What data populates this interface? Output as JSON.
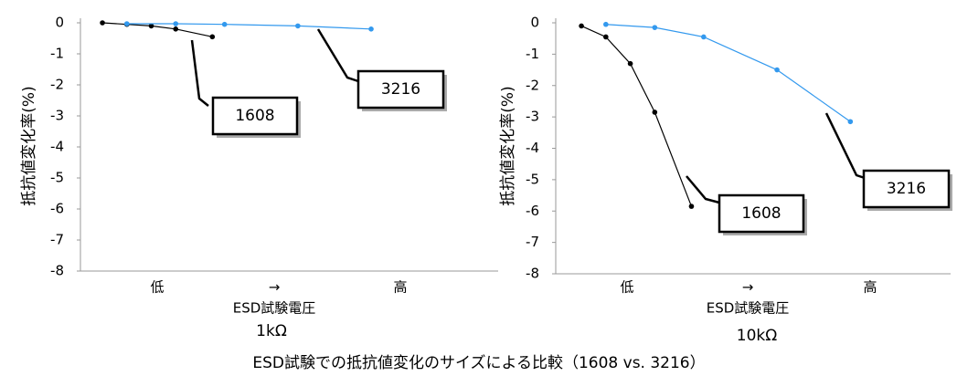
{
  "caption": "ESD試験での抵抗値変化のサイズによる比較（1608 vs. 3216）",
  "chart_data": [
    {
      "type": "line",
      "y_label": "抵抗値変化率(%)",
      "x_label": "ESD試験電圧",
      "x_annotations": [
        "低",
        "→",
        "高"
      ],
      "subtitle": "1kΩ",
      "xlim": [
        -0.9,
        16.2
      ],
      "ylim": [
        -8,
        0
      ],
      "yticks": [
        0,
        -1,
        -2,
        -3,
        -4,
        -5,
        -6,
        -7,
        -8
      ],
      "series": [
        {
          "name": "1608",
          "color": "#000000",
          "x": [
            0,
            1,
            2,
            3,
            4.5
          ],
          "values": [
            0,
            -0.05,
            -0.1,
            -0.2,
            -0.45
          ]
        },
        {
          "name": "3216",
          "color": "#3399ee",
          "x": [
            1,
            3,
            5,
            8,
            11
          ],
          "values": [
            -0.03,
            -0.03,
            -0.05,
            -0.1,
            -0.2
          ]
        }
      ]
    },
    {
      "type": "line",
      "y_label": "抵抗値変化率(%)",
      "x_label": "ESD試験電圧",
      "x_annotations": [
        "低",
        "→",
        "高"
      ],
      "subtitle": "10kΩ",
      "xlim": [
        -1.05,
        15.1
      ],
      "ylim": [
        -8,
        0
      ],
      "yticks": [
        0,
        -1,
        -2,
        -3,
        -4,
        -5,
        -6,
        -7,
        -8
      ],
      "series": [
        {
          "name": "1608",
          "color": "#000000",
          "x": [
            0,
            1,
            2,
            3,
            4.5
          ],
          "values": [
            -0.1,
            -0.45,
            -1.3,
            -2.85,
            -5.85
          ]
        },
        {
          "name": "3216",
          "color": "#3399ee",
          "x": [
            1,
            3,
            5,
            8,
            11
          ],
          "values": [
            -0.05,
            -0.15,
            -0.45,
            -1.5,
            -3.15
          ]
        }
      ]
    }
  ]
}
